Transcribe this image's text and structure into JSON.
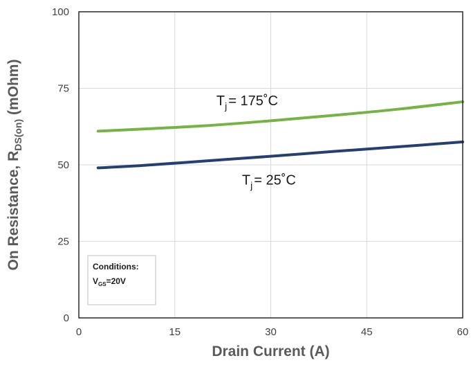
{
  "chart_data": {
    "type": "line",
    "xlabel": "Drain Current (A)",
    "ylabel": {
      "prefix": "On Resistance, R",
      "subscript": "DS(on)",
      "suffix": " (mOhm)"
    },
    "xlim": [
      0,
      60
    ],
    "ylim": [
      0,
      100
    ],
    "xticks": [
      "0",
      "15",
      "30",
      "45",
      "60"
    ],
    "yticks": [
      "0",
      "25",
      "50",
      "75",
      "100"
    ],
    "grid": true,
    "series": [
      {
        "label_main": "T",
        "label_sub": "j",
        "label_rest": "= 175˚C",
        "color": "#77b244",
        "x": [
          3,
          10,
          20,
          30,
          40,
          50,
          60
        ],
        "y": [
          61,
          61.7,
          62.8,
          64.4,
          66.2,
          68.2,
          70.6
        ]
      },
      {
        "label_main": "T",
        "label_sub": "j",
        "label_rest": "= 25˚C",
        "color": "#253f72",
        "x": [
          3,
          10,
          20,
          30,
          40,
          50,
          60
        ],
        "y": [
          49,
          49.8,
          51.3,
          52.8,
          54.4,
          55.9,
          57.5
        ]
      }
    ],
    "annotation": {
      "line1": "Conditions:",
      "line2_main": "V",
      "line2_sub": "GS",
      "line2_rest": "=20V"
    }
  }
}
